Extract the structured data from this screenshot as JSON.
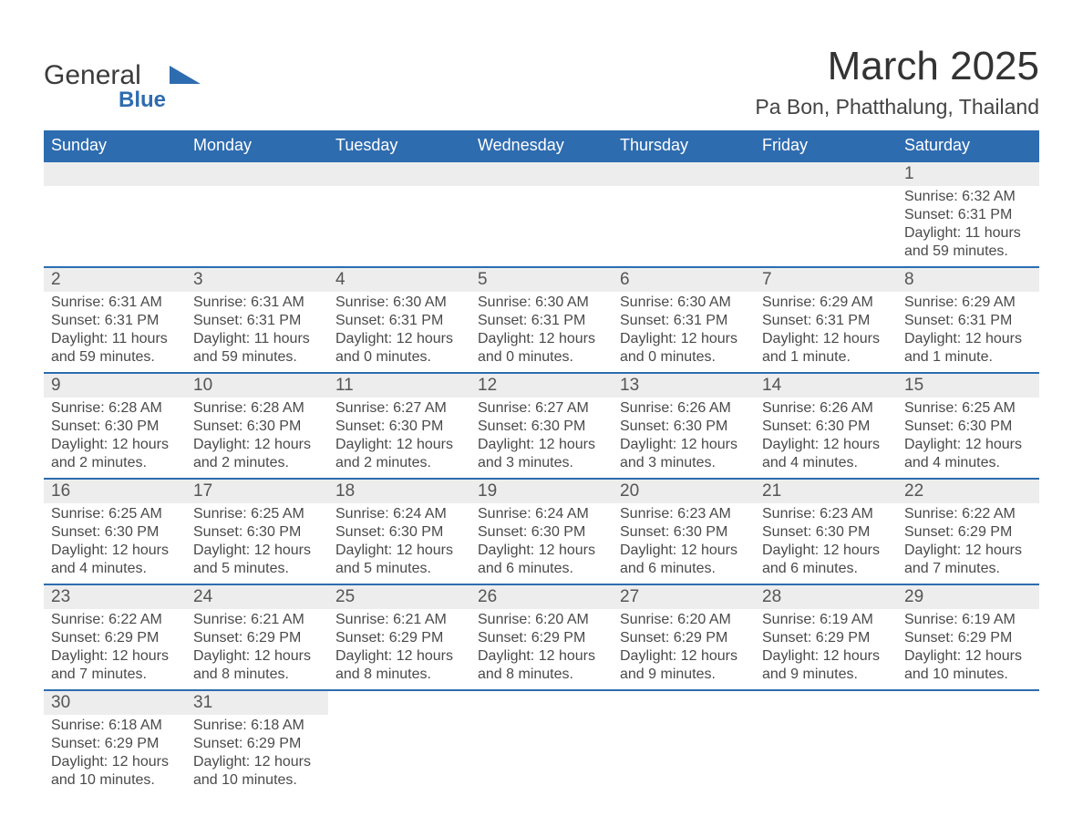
{
  "logo": {
    "main": "General",
    "sub": "Blue",
    "accent_color": "#2e6cb0"
  },
  "title": "March 2025",
  "location": "Pa Bon, Phatthalung, Thailand",
  "colors": {
    "header_bg": "#2e6cb0",
    "header_text": "#ffffff",
    "daynum_bg": "#ededed",
    "row_divider": "#2e6cb0",
    "body_text": "#4a4a4a",
    "page_bg": "#ffffff"
  },
  "typography": {
    "title_fontsize": 44,
    "location_fontsize": 23,
    "header_fontsize": 18,
    "daynum_fontsize": 19,
    "body_fontsize": 16
  },
  "type": "calendar-table",
  "weekdays": [
    "Sunday",
    "Monday",
    "Tuesday",
    "Wednesday",
    "Thursday",
    "Friday",
    "Saturday"
  ],
  "weeks": [
    [
      null,
      null,
      null,
      null,
      null,
      null,
      {
        "n": "1",
        "sunrise": "Sunrise: 6:32 AM",
        "sunset": "Sunset: 6:31 PM",
        "daylight": "Daylight: 11 hours and 59 minutes."
      }
    ],
    [
      {
        "n": "2",
        "sunrise": "Sunrise: 6:31 AM",
        "sunset": "Sunset: 6:31 PM",
        "daylight": "Daylight: 11 hours and 59 minutes."
      },
      {
        "n": "3",
        "sunrise": "Sunrise: 6:31 AM",
        "sunset": "Sunset: 6:31 PM",
        "daylight": "Daylight: 11 hours and 59 minutes."
      },
      {
        "n": "4",
        "sunrise": "Sunrise: 6:30 AM",
        "sunset": "Sunset: 6:31 PM",
        "daylight": "Daylight: 12 hours and 0 minutes."
      },
      {
        "n": "5",
        "sunrise": "Sunrise: 6:30 AM",
        "sunset": "Sunset: 6:31 PM",
        "daylight": "Daylight: 12 hours and 0 minutes."
      },
      {
        "n": "6",
        "sunrise": "Sunrise: 6:30 AM",
        "sunset": "Sunset: 6:31 PM",
        "daylight": "Daylight: 12 hours and 0 minutes."
      },
      {
        "n": "7",
        "sunrise": "Sunrise: 6:29 AM",
        "sunset": "Sunset: 6:31 PM",
        "daylight": "Daylight: 12 hours and 1 minute."
      },
      {
        "n": "8",
        "sunrise": "Sunrise: 6:29 AM",
        "sunset": "Sunset: 6:31 PM",
        "daylight": "Daylight: 12 hours and 1 minute."
      }
    ],
    [
      {
        "n": "9",
        "sunrise": "Sunrise: 6:28 AM",
        "sunset": "Sunset: 6:30 PM",
        "daylight": "Daylight: 12 hours and 2 minutes."
      },
      {
        "n": "10",
        "sunrise": "Sunrise: 6:28 AM",
        "sunset": "Sunset: 6:30 PM",
        "daylight": "Daylight: 12 hours and 2 minutes."
      },
      {
        "n": "11",
        "sunrise": "Sunrise: 6:27 AM",
        "sunset": "Sunset: 6:30 PM",
        "daylight": "Daylight: 12 hours and 2 minutes."
      },
      {
        "n": "12",
        "sunrise": "Sunrise: 6:27 AM",
        "sunset": "Sunset: 6:30 PM",
        "daylight": "Daylight: 12 hours and 3 minutes."
      },
      {
        "n": "13",
        "sunrise": "Sunrise: 6:26 AM",
        "sunset": "Sunset: 6:30 PM",
        "daylight": "Daylight: 12 hours and 3 minutes."
      },
      {
        "n": "14",
        "sunrise": "Sunrise: 6:26 AM",
        "sunset": "Sunset: 6:30 PM",
        "daylight": "Daylight: 12 hours and 4 minutes."
      },
      {
        "n": "15",
        "sunrise": "Sunrise: 6:25 AM",
        "sunset": "Sunset: 6:30 PM",
        "daylight": "Daylight: 12 hours and 4 minutes."
      }
    ],
    [
      {
        "n": "16",
        "sunrise": "Sunrise: 6:25 AM",
        "sunset": "Sunset: 6:30 PM",
        "daylight": "Daylight: 12 hours and 4 minutes."
      },
      {
        "n": "17",
        "sunrise": "Sunrise: 6:25 AM",
        "sunset": "Sunset: 6:30 PM",
        "daylight": "Daylight: 12 hours and 5 minutes."
      },
      {
        "n": "18",
        "sunrise": "Sunrise: 6:24 AM",
        "sunset": "Sunset: 6:30 PM",
        "daylight": "Daylight: 12 hours and 5 minutes."
      },
      {
        "n": "19",
        "sunrise": "Sunrise: 6:24 AM",
        "sunset": "Sunset: 6:30 PM",
        "daylight": "Daylight: 12 hours and 6 minutes."
      },
      {
        "n": "20",
        "sunrise": "Sunrise: 6:23 AM",
        "sunset": "Sunset: 6:30 PM",
        "daylight": "Daylight: 12 hours and 6 minutes."
      },
      {
        "n": "21",
        "sunrise": "Sunrise: 6:23 AM",
        "sunset": "Sunset: 6:30 PM",
        "daylight": "Daylight: 12 hours and 6 minutes."
      },
      {
        "n": "22",
        "sunrise": "Sunrise: 6:22 AM",
        "sunset": "Sunset: 6:29 PM",
        "daylight": "Daylight: 12 hours and 7 minutes."
      }
    ],
    [
      {
        "n": "23",
        "sunrise": "Sunrise: 6:22 AM",
        "sunset": "Sunset: 6:29 PM",
        "daylight": "Daylight: 12 hours and 7 minutes."
      },
      {
        "n": "24",
        "sunrise": "Sunrise: 6:21 AM",
        "sunset": "Sunset: 6:29 PM",
        "daylight": "Daylight: 12 hours and 8 minutes."
      },
      {
        "n": "25",
        "sunrise": "Sunrise: 6:21 AM",
        "sunset": "Sunset: 6:29 PM",
        "daylight": "Daylight: 12 hours and 8 minutes."
      },
      {
        "n": "26",
        "sunrise": "Sunrise: 6:20 AM",
        "sunset": "Sunset: 6:29 PM",
        "daylight": "Daylight: 12 hours and 8 minutes."
      },
      {
        "n": "27",
        "sunrise": "Sunrise: 6:20 AM",
        "sunset": "Sunset: 6:29 PM",
        "daylight": "Daylight: 12 hours and 9 minutes."
      },
      {
        "n": "28",
        "sunrise": "Sunrise: 6:19 AM",
        "sunset": "Sunset: 6:29 PM",
        "daylight": "Daylight: 12 hours and 9 minutes."
      },
      {
        "n": "29",
        "sunrise": "Sunrise: 6:19 AM",
        "sunset": "Sunset: 6:29 PM",
        "daylight": "Daylight: 12 hours and 10 minutes."
      }
    ],
    [
      {
        "n": "30",
        "sunrise": "Sunrise: 6:18 AM",
        "sunset": "Sunset: 6:29 PM",
        "daylight": "Daylight: 12 hours and 10 minutes."
      },
      {
        "n": "31",
        "sunrise": "Sunrise: 6:18 AM",
        "sunset": "Sunset: 6:29 PM",
        "daylight": "Daylight: 12 hours and 10 minutes."
      },
      null,
      null,
      null,
      null,
      null
    ]
  ]
}
